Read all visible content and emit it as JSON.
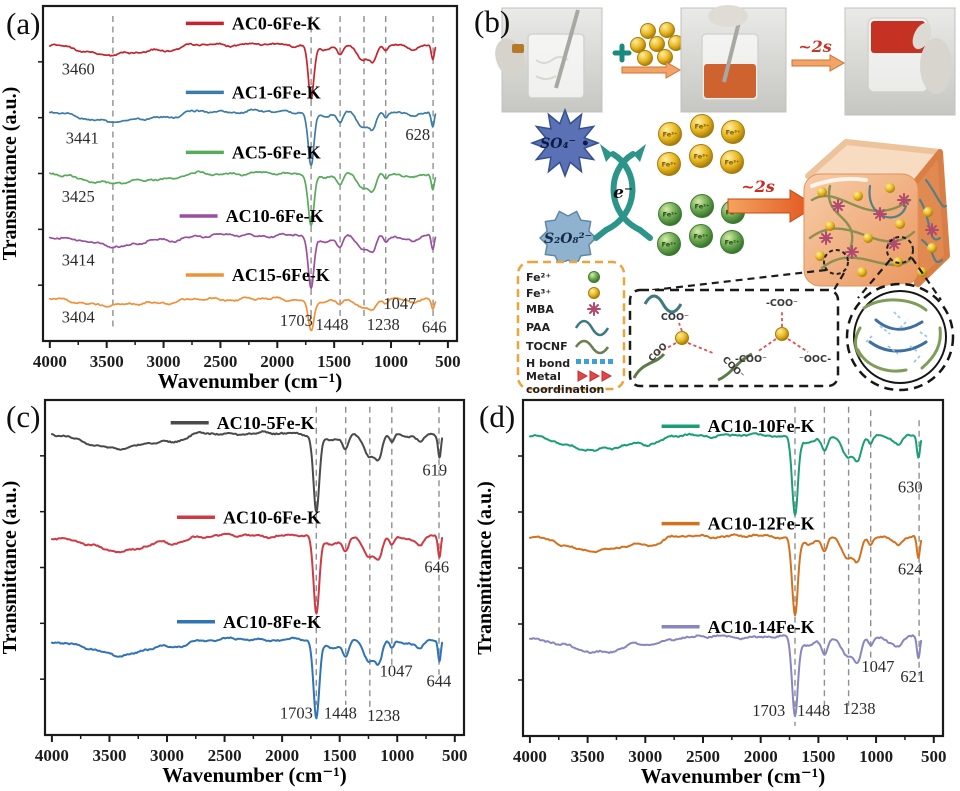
{
  "panel_labels": {
    "a": "(a)",
    "b": "(b)",
    "c": "(c)",
    "d": "(d)"
  },
  "chart_data": [
    {
      "id": "a",
      "type": "line",
      "xlabel": "Wavenumber (cm⁻¹)",
      "ylabel": "Transmittance (a.u.)",
      "x_range": [
        4000,
        500
      ],
      "x_reversed": true,
      "grid": false,
      "legend_position": "staggered-inside",
      "x_domain": [
        4060,
        420
      ],
      "frame": [
        43,
        6,
        457,
        341
      ],
      "depth_unit": 52,
      "xticks": [
        "4000",
        "3500",
        "3000",
        "2500",
        "2000",
        "1500",
        "1000",
        "500"
      ],
      "minor_ticks": [
        3750,
        3250,
        2750,
        2250,
        1750,
        1250,
        750
      ],
      "dashed_guides": [
        [
          3445,
          0.03,
          0.97
        ],
        [
          1703,
          0.03,
          0.93
        ],
        [
          1448,
          0.03,
          0.93
        ],
        [
          1238,
          0.03,
          0.93
        ],
        [
          1047,
          0.03,
          0.86
        ],
        [
          630,
          0.03,
          0.94
        ]
      ],
      "peaks": [
        [
          3420,
          265,
          0.2
        ],
        [
          2925,
          85,
          0.07
        ],
        [
          1703,
          25,
          1.0
        ],
        [
          1590,
          80,
          0.1
        ],
        [
          1448,
          26,
          0.2
        ],
        [
          1242,
          52,
          0.28
        ],
        [
          1158,
          30,
          0.26
        ],
        [
          1047,
          20,
          0.11
        ],
        [
          870,
          60,
          0.06
        ],
        [
          800,
          30,
          0.08
        ],
        [
          633,
          13,
          0.3
        ]
      ],
      "series": [
        {
          "name": "AC0-6Fe-K",
          "color": "#c8232c",
          "offset": 0.115,
          "seed": 3,
          "scale": 1.0,
          "legend": [
            0.345,
            0.052
          ]
        },
        {
          "name": "AC1-6Fe-K",
          "color": "#3b7ca9",
          "offset": 0.315,
          "seed": 7,
          "scale": 1.0,
          "legend": [
            0.345,
            0.258
          ]
        },
        {
          "name": "AC5-6Fe-K",
          "color": "#57ab5a",
          "offset": 0.5,
          "seed": 11,
          "scale": 0.95,
          "legend": [
            0.345,
            0.437
          ]
        },
        {
          "name": "AC10-6Fe-K",
          "color": "#9a4f9f",
          "offset": 0.685,
          "seed": 17,
          "scale": 1.0,
          "legend": [
            0.33,
            0.627
          ]
        },
        {
          "name": "AC15-6Fe-K",
          "color": "#f0913a",
          "offset": 0.875,
          "seed": 23,
          "scale": 0.6,
          "legend": [
            0.345,
            0.803
          ]
        }
      ],
      "annotations": [
        {
          "text": "3460",
          "x": 0.085,
          "y": 0.205
        },
        {
          "text": "3441",
          "x": 0.095,
          "y": 0.41
        },
        {
          "text": "3425",
          "x": 0.085,
          "y": 0.585
        },
        {
          "text": "3414",
          "x": 0.085,
          "y": 0.775
        },
        {
          "text": "3404",
          "x": 0.085,
          "y": 0.945
        },
        {
          "text": "628",
          "x": 0.905,
          "y": 0.4
        },
        {
          "text": "1047",
          "x": 0.862,
          "y": 0.905
        },
        {
          "text": "1703",
          "x": 0.612,
          "y": 0.955
        },
        {
          "text": "1448",
          "x": 0.698,
          "y": 0.967
        },
        {
          "text": "1238",
          "x": 0.822,
          "y": 0.967
        },
        {
          "text": "646",
          "x": 0.945,
          "y": 0.975
        }
      ]
    },
    {
      "id": "c",
      "type": "line",
      "xlabel": "Wavenumber (cm⁻¹)",
      "ylabel": "Transmittance (a.u.)",
      "x_range": [
        4000,
        500
      ],
      "x_reversed": true,
      "grid": false,
      "legend_position": "staggered-inside",
      "x_domain": [
        4060,
        420
      ],
      "frame": [
        45,
        7,
        464,
        342
      ],
      "depth_unit": 76,
      "xticks": [
        "4000",
        "3500",
        "3000",
        "2500",
        "2000",
        "1500",
        "1000",
        "500"
      ],
      "minor_ticks": [
        3750,
        3250,
        2750,
        2250,
        1750,
        1250,
        750
      ],
      "dashed_guides": [
        [
          1703,
          0.02,
          0.91
        ],
        [
          1448,
          0.02,
          0.91
        ],
        [
          1238,
          0.02,
          0.93
        ],
        [
          1047,
          0.02,
          0.79
        ],
        [
          637,
          0.02,
          0.82
        ]
      ],
      "peaks": [
        [
          3420,
          265,
          0.2
        ],
        [
          2925,
          85,
          0.07
        ],
        [
          1703,
          25,
          1.0
        ],
        [
          1590,
          80,
          0.1
        ],
        [
          1448,
          26,
          0.2
        ],
        [
          1242,
          52,
          0.28
        ],
        [
          1158,
          30,
          0.26
        ],
        [
          1047,
          20,
          0.11
        ],
        [
          870,
          60,
          0.06
        ],
        [
          800,
          30,
          0.08
        ],
        [
          633,
          13,
          0.3
        ]
      ],
      "series": [
        {
          "name": "AC10-5Fe-K",
          "color": "#4a4a4a",
          "offset": 0.1,
          "seed": 31,
          "scale": 1.0,
          "legend": [
            0.3,
            0.068
          ]
        },
        {
          "name": "AC10-6Fe-K",
          "color": "#cf3b44",
          "offset": 0.405,
          "seed": 37,
          "scale": 1.0,
          "legend": [
            0.315,
            0.35
          ]
        },
        {
          "name": "AC10-8Fe-K",
          "color": "#2f74b5",
          "offset": 0.715,
          "seed": 41,
          "scale": 1.0,
          "legend": [
            0.315,
            0.662
          ]
        }
      ],
      "annotations": [
        {
          "text": "619",
          "x": 0.93,
          "y": 0.225
        },
        {
          "text": "646",
          "x": 0.935,
          "y": 0.515
        },
        {
          "text": "644",
          "x": 0.94,
          "y": 0.855
        },
        {
          "text": "1047",
          "x": 0.838,
          "y": 0.825
        },
        {
          "text": "1703",
          "x": 0.6,
          "y": 0.95
        },
        {
          "text": "1448",
          "x": 0.705,
          "y": 0.95
        },
        {
          "text": "1238",
          "x": 0.808,
          "y": 0.958
        }
      ]
    },
    {
      "id": "d",
      "type": "line",
      "xlabel": "Wavenumber (cm⁻¹)",
      "ylabel": "Transmittance (a.u.)",
      "x_range": [
        4000,
        500
      ],
      "x_reversed": true,
      "grid": false,
      "legend_position": "staggered-inside",
      "x_domain": [
        4060,
        420
      ],
      "frame": [
        48,
        7,
        468,
        343
      ],
      "depth_unit": 76,
      "xticks": [
        "4000",
        "3500",
        "3000",
        "2500",
        "2000",
        "1500",
        "1000",
        "500"
      ],
      "minor_ticks": [
        3750,
        3250,
        2750,
        2250,
        1750,
        1250,
        750
      ],
      "dashed_guides": [
        [
          1703,
          0.02,
          0.97
        ],
        [
          1448,
          0.02,
          0.91
        ],
        [
          1238,
          0.02,
          0.91
        ],
        [
          1047,
          0.03,
          0.78
        ],
        [
          627,
          0.06,
          0.82
        ]
      ],
      "peaks": [
        [
          3420,
          265,
          0.2
        ],
        [
          2925,
          85,
          0.07
        ],
        [
          1703,
          25,
          1.0
        ],
        [
          1590,
          80,
          0.1
        ],
        [
          1448,
          26,
          0.2
        ],
        [
          1242,
          52,
          0.28
        ],
        [
          1158,
          30,
          0.26
        ],
        [
          1047,
          20,
          0.11
        ],
        [
          870,
          60,
          0.06
        ],
        [
          800,
          30,
          0.08
        ],
        [
          633,
          13,
          0.3
        ]
      ],
      "series": [
        {
          "name": "AC10-10Fe-K",
          "color": "#1a9e77",
          "offset": 0.105,
          "seed": 43,
          "scale": 1.0,
          "legend": [
            0.33,
            0.078
          ]
        },
        {
          "name": "AC10-12Fe-K",
          "color": "#d4711f",
          "offset": 0.405,
          "seed": 47,
          "scale": 1.0,
          "legend": [
            0.33,
            0.368
          ]
        },
        {
          "name": "AC10-14Fe-K",
          "color": "#8886c0",
          "offset": 0.705,
          "seed": 53,
          "scale": 1.0,
          "legend": [
            0.33,
            0.675
          ]
        }
      ],
      "annotations": [
        {
          "text": "630",
          "x": 0.922,
          "y": 0.275
        },
        {
          "text": "624",
          "x": 0.922,
          "y": 0.52
        },
        {
          "text": "1047",
          "x": 0.845,
          "y": 0.81
        },
        {
          "text": "621",
          "x": 0.928,
          "y": 0.84
        },
        {
          "text": "1703",
          "x": 0.585,
          "y": 0.94
        },
        {
          "text": "1448",
          "x": 0.692,
          "y": 0.94
        },
        {
          "text": "1238",
          "x": 0.8,
          "y": 0.935
        }
      ]
    }
  ],
  "panel_b": {
    "plus": "+",
    "time_fast1": "~2s",
    "time_fast2": "~2s",
    "radical_so4": "SO₄⁻ •",
    "persulfate": "S₂O₈²⁻",
    "electron": "e⁻",
    "fe3": "Fe³⁺",
    "fe2": "Fe²⁺",
    "legend": {
      "fe2": "Fe²⁺",
      "fe3": "Fe³⁺",
      "mba": "MBA",
      "paa": "PAA",
      "tocnf": "TOCNF",
      "hbond": "H bond",
      "metal1": "Metal",
      "metal2": "coordination"
    },
    "coo": {
      "a": "COO⁻",
      "b": "COO",
      "c": "COO⁻",
      "d": "-COO⁻",
      "e": "-COO⁻",
      "f": "⁻OOC-"
    },
    "colors": {
      "gold": "#d9a81e",
      "green_ion": "#5f9c43",
      "so4_star": "#5a72b5",
      "s2o8_gear": "#8fb3cf",
      "redox_arrows": "#2d948a",
      "time_red": "#d0281c",
      "legend_border": "#eda43b",
      "cube_face": "#f0b488"
    }
  }
}
